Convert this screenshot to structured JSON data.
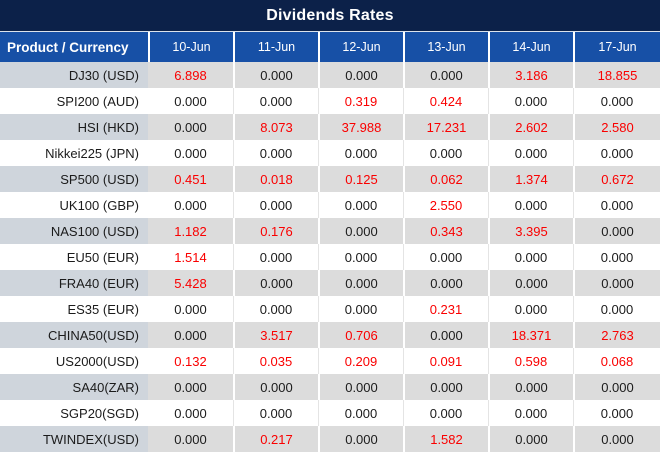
{
  "title": "Dividends Rates",
  "chart_data": {
    "type": "table",
    "title": "Dividends Rates",
    "corner_header": "Product / Currency",
    "columns": [
      "10-Jun",
      "11-Jun",
      "12-Jun",
      "13-Jun",
      "14-Jun",
      "17-Jun"
    ],
    "rows": [
      {
        "product": "DJ30 (USD)",
        "values": [
          "6.898",
          "0.000",
          "0.000",
          "0.000",
          "3.186",
          "18.855"
        ],
        "red_values": [
          true,
          false,
          false,
          false,
          true,
          true
        ]
      },
      {
        "product": "SPI200 (AUD)",
        "values": [
          "0.000",
          "0.000",
          "0.319",
          "0.424",
          "0.000",
          "0.000"
        ],
        "red_values": [
          false,
          false,
          true,
          true,
          false,
          false
        ]
      },
      {
        "product": "HSI (HKD)",
        "values": [
          "0.000",
          "8.073",
          "37.988",
          "17.231",
          "2.602",
          "2.580"
        ],
        "red_values": [
          false,
          true,
          true,
          true,
          true,
          true
        ]
      },
      {
        "product": "Nikkei225 (JPN)",
        "values": [
          "0.000",
          "0.000",
          "0.000",
          "0.000",
          "0.000",
          "0.000"
        ],
        "red_values": [
          false,
          false,
          false,
          false,
          false,
          false
        ]
      },
      {
        "product": "SP500 (USD)",
        "values": [
          "0.451",
          "0.018",
          "0.125",
          "0.062",
          "1.374",
          "0.672"
        ],
        "red_values": [
          true,
          true,
          true,
          true,
          true,
          true
        ]
      },
      {
        "product": "UK100 (GBP)",
        "values": [
          "0.000",
          "0.000",
          "0.000",
          "2.550",
          "0.000",
          "0.000"
        ],
        "red_values": [
          false,
          false,
          false,
          true,
          false,
          false
        ]
      },
      {
        "product": "NAS100 (USD)",
        "values": [
          "1.182",
          "0.176",
          "0.000",
          "0.343",
          "3.395",
          "0.000"
        ],
        "red_values": [
          true,
          true,
          false,
          true,
          true,
          false
        ]
      },
      {
        "product": "EU50 (EUR)",
        "values": [
          "1.514",
          "0.000",
          "0.000",
          "0.000",
          "0.000",
          "0.000"
        ],
        "red_values": [
          true,
          false,
          false,
          false,
          false,
          false
        ]
      },
      {
        "product": "FRA40 (EUR)",
        "values": [
          "5.428",
          "0.000",
          "0.000",
          "0.000",
          "0.000",
          "0.000"
        ],
        "red_values": [
          true,
          false,
          false,
          false,
          false,
          false
        ]
      },
      {
        "product": "ES35 (EUR)",
        "values": [
          "0.000",
          "0.000",
          "0.000",
          "0.231",
          "0.000",
          "0.000"
        ],
        "red_values": [
          false,
          false,
          false,
          true,
          false,
          false
        ]
      },
      {
        "product": "CHINA50(USD)",
        "values": [
          "0.000",
          "3.517",
          "0.706",
          "0.000",
          "18.371",
          "2.763"
        ],
        "red_values": [
          false,
          true,
          true,
          false,
          true,
          true
        ]
      },
      {
        "product": "US2000(USD)",
        "values": [
          "0.132",
          "0.035",
          "0.209",
          "0.091",
          "0.598",
          "0.068"
        ],
        "red_values": [
          true,
          true,
          true,
          true,
          true,
          true
        ]
      },
      {
        "product": "SA40(ZAR)",
        "values": [
          "0.000",
          "0.000",
          "0.000",
          "0.000",
          "0.000",
          "0.000"
        ],
        "red_values": [
          false,
          false,
          false,
          false,
          false,
          false
        ]
      },
      {
        "product": "SGP20(SGD)",
        "values": [
          "0.000",
          "0.000",
          "0.000",
          "0.000",
          "0.000",
          "0.000"
        ],
        "red_values": [
          false,
          false,
          false,
          false,
          false,
          false
        ]
      },
      {
        "product": "TWINDEX(USD)",
        "values": [
          "0.000",
          "0.217",
          "0.000",
          "1.582",
          "0.000",
          "0.000"
        ],
        "red_values": [
          false,
          true,
          false,
          true,
          false,
          false
        ]
      }
    ]
  },
  "colors": {
    "title_bg": "#0c2149",
    "header_bg": "#1750a6",
    "stripe_product": "#cfd5dc",
    "stripe_value": "#dcdcdc",
    "red_value": "#fa0000"
  }
}
